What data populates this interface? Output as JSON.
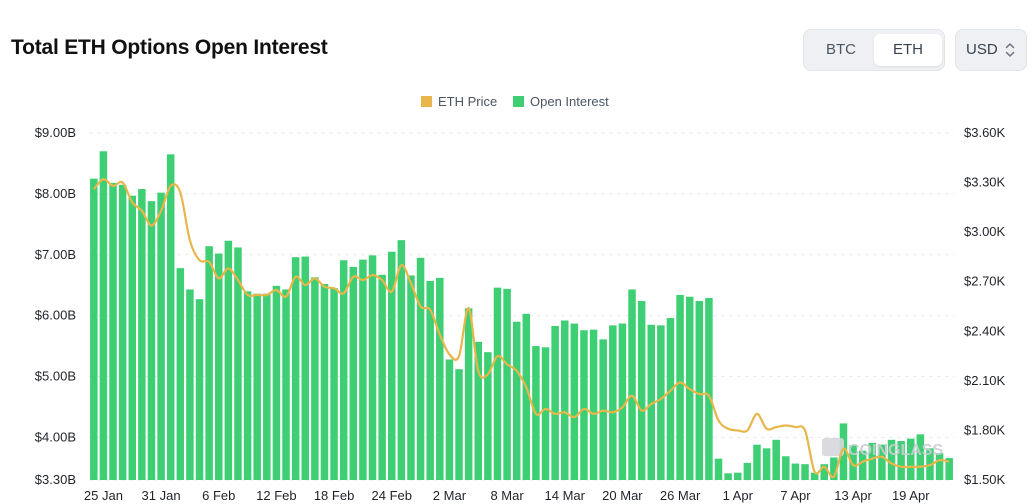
{
  "header": {
    "title": "Total ETH Options Open Interest",
    "asset_options": [
      "BTC",
      "ETH"
    ],
    "selected_asset": "ETH",
    "currency": "USD"
  },
  "colors": {
    "bar": "#3ecf74",
    "price_line": "#e8b64a",
    "grid": "#e9ecef"
  },
  "chart_data": {
    "type": "bar",
    "legend": {
      "placement": "top-center",
      "items": [
        {
          "label": "ETH Price",
          "color": "#e8b64a"
        },
        {
          "label": "Open Interest",
          "color": "#3ecf74"
        }
      ]
    },
    "grid": true,
    "x_tick_labels": [
      "25 Jan",
      "31 Jan",
      "6 Feb",
      "12 Feb",
      "18 Feb",
      "24 Feb",
      "2 Mar",
      "8 Mar",
      "14 Mar",
      "20 Mar",
      "26 Mar",
      "1 Apr",
      "7 Apr",
      "13 Apr",
      "19 Apr"
    ],
    "y_left": {
      "min": 3.3,
      "max": 9.0,
      "ticks": [
        {
          "value": 9.0,
          "label": "$9.00B"
        },
        {
          "value": 8.0,
          "label": "$8.00B"
        },
        {
          "value": 7.0,
          "label": "$7.00B"
        },
        {
          "value": 6.0,
          "label": "$6.00B"
        },
        {
          "value": 5.0,
          "label": "$5.00B"
        },
        {
          "value": 4.0,
          "label": "$4.00B"
        },
        {
          "value": 3.3,
          "label": "$3.30B"
        }
      ]
    },
    "y_right": {
      "min": 1.5,
      "max": 3.6,
      "ticks": [
        {
          "value": 3.6,
          "label": "$3.60K"
        },
        {
          "value": 3.3,
          "label": "$3.30K"
        },
        {
          "value": 3.0,
          "label": "$3.00K"
        },
        {
          "value": 2.7,
          "label": "$2.70K"
        },
        {
          "value": 2.4,
          "label": "$2.40K"
        },
        {
          "value": 2.1,
          "label": "$2.10K"
        },
        {
          "value": 1.8,
          "label": "$1.80K"
        },
        {
          "value": 1.5,
          "label": "$1.50K"
        }
      ]
    },
    "series": [
      {
        "name": "Open Interest",
        "axis": "left",
        "unit": "B USD",
        "values": [
          8.25,
          8.7,
          8.18,
          8.15,
          7.97,
          8.08,
          7.88,
          8.02,
          8.65,
          6.78,
          6.43,
          6.27,
          7.14,
          7.02,
          7.23,
          7.12,
          6.4,
          6.36,
          6.36,
          6.49,
          6.43,
          6.96,
          6.97,
          6.63,
          6.52,
          6.45,
          6.91,
          6.8,
          6.92,
          6.99,
          6.67,
          7.05,
          7.24,
          6.66,
          6.95,
          6.57,
          6.62,
          5.28,
          5.12,
          6.12,
          5.57,
          5.4,
          6.46,
          6.44,
          5.9,
          6.03,
          5.5,
          5.48,
          5.83,
          5.92,
          5.87,
          5.76,
          5.77,
          5.61,
          5.84,
          5.87,
          6.43,
          6.24,
          5.85,
          5.84,
          5.96,
          6.34,
          6.31,
          6.24,
          6.29,
          3.65,
          3.41,
          3.42,
          3.58,
          3.88,
          3.82,
          3.96,
          3.69,
          3.57,
          3.56,
          3.42,
          3.56,
          3.67,
          4.23,
          3.87,
          3.78,
          3.91,
          3.88,
          3.96,
          3.94,
          3.98,
          4.05,
          3.82,
          3.74,
          3.66
        ]
      },
      {
        "name": "ETH Price",
        "axis": "right",
        "unit": "K USD",
        "values": [
          3.26,
          3.32,
          3.28,
          3.3,
          3.18,
          3.13,
          3.04,
          3.13,
          3.28,
          3.24,
          2.95,
          2.83,
          2.82,
          2.72,
          2.78,
          2.71,
          2.62,
          2.62,
          2.62,
          2.65,
          2.61,
          2.73,
          2.68,
          2.72,
          2.67,
          2.66,
          2.63,
          2.73,
          2.71,
          2.74,
          2.71,
          2.64,
          2.8,
          2.69,
          2.55,
          2.53,
          2.38,
          2.26,
          2.25,
          2.54,
          2.16,
          2.14,
          2.25,
          2.2,
          2.16,
          2.06,
          1.9,
          1.93,
          1.9,
          1.91,
          1.88,
          1.93,
          1.9,
          1.92,
          1.91,
          1.94,
          2.01,
          1.92,
          1.96,
          1.99,
          2.04,
          2.09,
          2.05,
          2.02,
          2.01,
          1.86,
          1.81,
          1.8,
          1.8,
          1.9,
          1.81,
          1.82,
          1.83,
          1.82,
          1.8,
          1.55,
          1.58,
          1.52,
          1.69,
          1.59,
          1.61,
          1.63,
          1.64,
          1.6,
          1.58,
          1.58,
          1.58,
          1.59,
          1.62,
          1.61
        ]
      }
    ]
  }
}
